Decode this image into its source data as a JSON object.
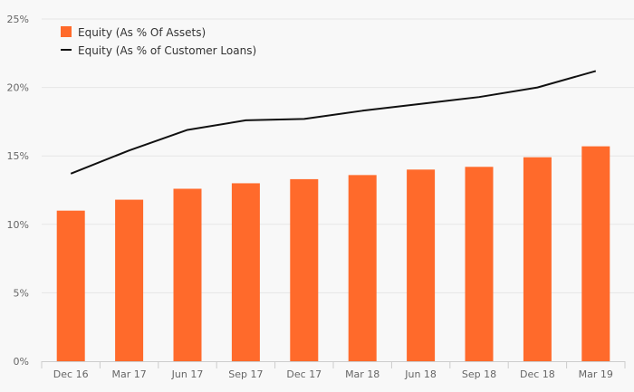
{
  "colors": {
    "background": "#f8f8f8",
    "bar": "#ff6a2b",
    "line": "#111111",
    "grid": "#e6e6e6",
    "axis": "#cccccc"
  },
  "chart_data": {
    "type": "bar",
    "categories": [
      "Dec 16",
      "Mar 17",
      "Jun 17",
      "Sep 17",
      "Dec 17",
      "Mar 18",
      "Jun 18",
      "Sep 18",
      "Dec 18",
      "Mar 19"
    ],
    "series": [
      {
        "name": "Equity (As % Of Assets)",
        "type": "bar",
        "values": [
          11.0,
          11.8,
          12.6,
          13.0,
          13.3,
          13.6,
          14.0,
          14.2,
          14.9,
          15.7
        ]
      },
      {
        "name": "Equity (As % of Customer Loans)",
        "type": "line",
        "values": [
          13.7,
          15.4,
          16.9,
          17.6,
          17.7,
          18.3,
          18.8,
          19.3,
          20.0,
          21.2
        ]
      }
    ],
    "ylim": [
      0,
      25
    ],
    "yticks": [
      0,
      5,
      10,
      15,
      20,
      25
    ],
    "ytick_labels": [
      "0%",
      "5%",
      "10%",
      "15%",
      "20%",
      "25%"
    ],
    "grid": true,
    "legend_position": "top-left",
    "title": "",
    "xlabel": "",
    "ylabel": ""
  }
}
